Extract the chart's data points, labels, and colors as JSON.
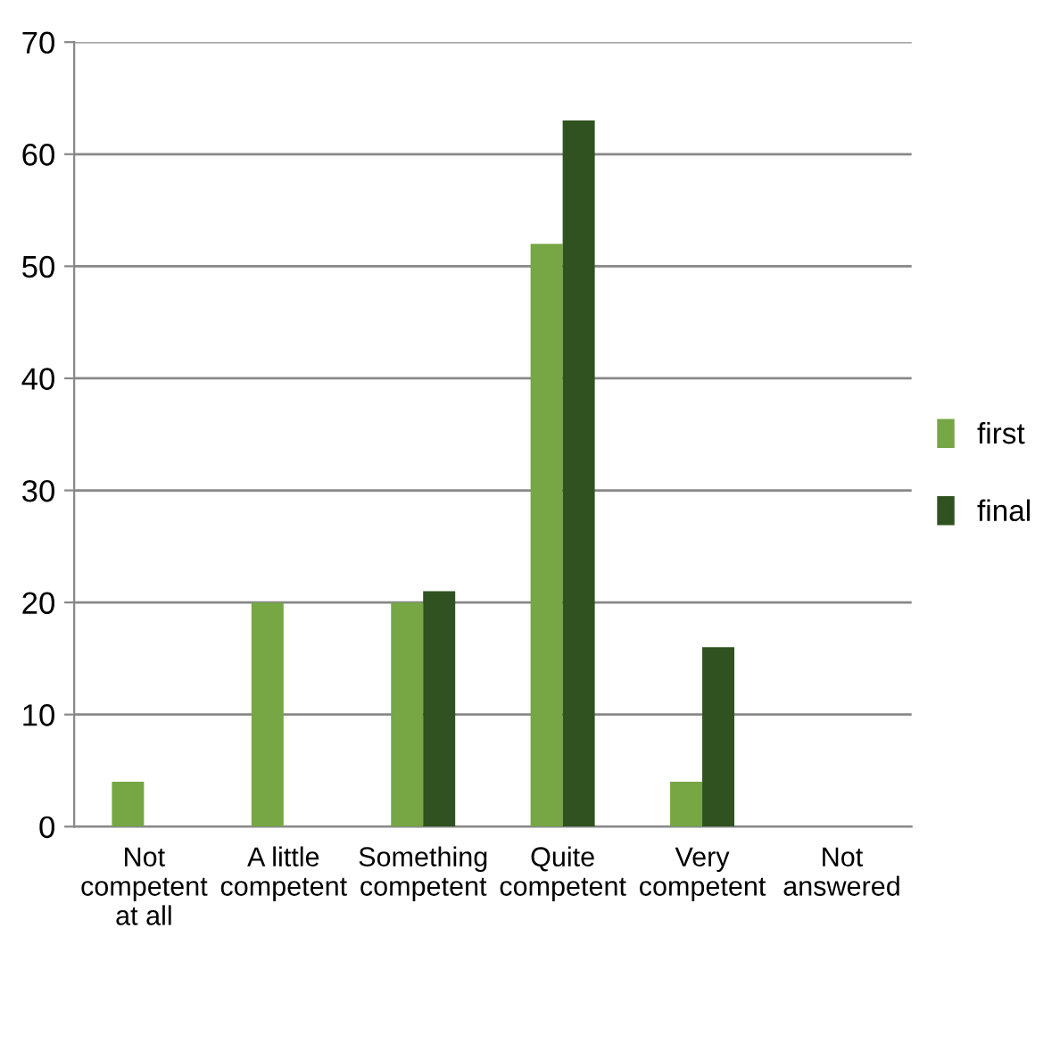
{
  "chart_data": {
    "type": "bar",
    "categories": [
      "Not\ncompetent\nat all",
      "A little\ncompetent",
      "Something\ncompetent",
      "Quite\ncompetent",
      "Very\ncompetent",
      "Not\nanswered"
    ],
    "series": [
      {
        "name": "first",
        "color": "#77a645",
        "values": [
          4,
          20,
          20,
          52,
          4,
          0
        ]
      },
      {
        "name": "final",
        "color": "#2f5220",
        "values": [
          0,
          0,
          21,
          63,
          16,
          0
        ]
      }
    ],
    "ylim": [
      0,
      70
    ],
    "yticks": [
      0,
      10,
      20,
      30,
      40,
      50,
      60,
      70
    ],
    "grid": "y",
    "legend": "right"
  }
}
